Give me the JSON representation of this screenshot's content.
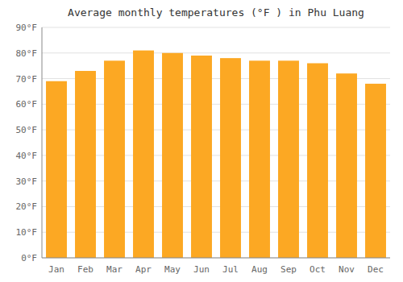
{
  "chart_data": {
    "type": "bar",
    "title": "Average monthly temperatures (°F ) in Phu Luang",
    "categories": [
      "Jan",
      "Feb",
      "Mar",
      "Apr",
      "May",
      "Jun",
      "Jul",
      "Aug",
      "Sep",
      "Oct",
      "Nov",
      "Dec"
    ],
    "values": [
      69,
      73,
      77,
      81,
      80,
      79,
      78,
      77,
      77,
      76,
      72,
      68
    ],
    "color": "#FCA823",
    "ylim": [
      0,
      90
    ],
    "yticks": [
      {
        "value": 0,
        "label": "0°F"
      },
      {
        "value": 10,
        "label": "10°F"
      },
      {
        "value": 20,
        "label": "20°F"
      },
      {
        "value": 30,
        "label": "30°F"
      },
      {
        "value": 40,
        "label": "40°F"
      },
      {
        "value": 50,
        "label": "50°F"
      },
      {
        "value": 60,
        "label": "60°F"
      },
      {
        "value": 70,
        "label": "70°F"
      },
      {
        "value": 80,
        "label": "80°F"
      },
      {
        "value": 90,
        "label": "90°F"
      }
    ],
    "grid": true
  }
}
